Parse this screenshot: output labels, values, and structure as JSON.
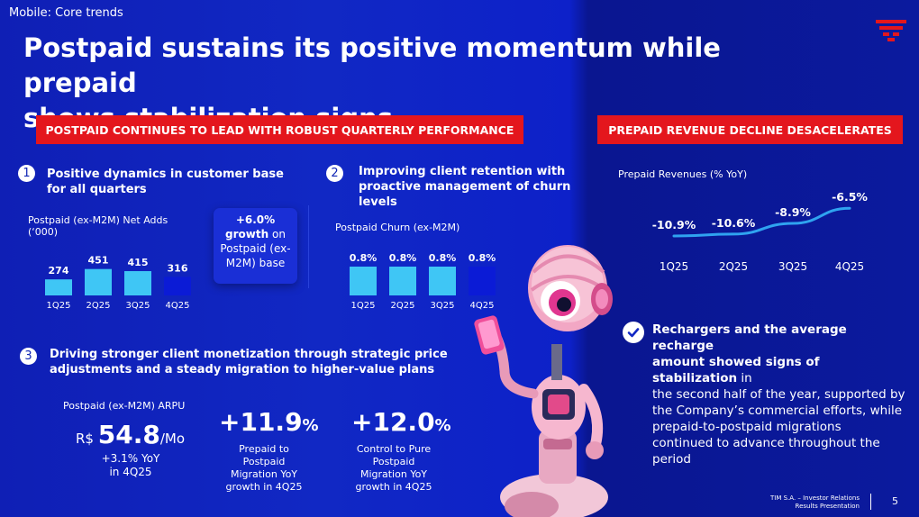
{
  "header": {
    "topic": "Mobile: Core trends",
    "title_line1": "Postpaid sustains its positive momentum while prepaid",
    "title_line2": "shows stabilization signs"
  },
  "banners": {
    "left": "POSTPAID CONTINUES TO LEAD WITH ROBUST QUARTERLY PERFORMANCE",
    "right": "PREPAID REVENUE DECLINE DESACELERATES"
  },
  "section1": {
    "number": "1",
    "heading_line1": "Positive dynamics in customer base",
    "heading_line2": "for all quarters",
    "chart_label_line1": "Postpaid (ex-M2M) Net Adds",
    "chart_label_line2": "(‘000)",
    "growth_line1": "+6.0%",
    "growth_line2": "growth",
    "growth_line2b": " on",
    "growth_line3": "Postpaid (ex-",
    "growth_line4": "M2M) base"
  },
  "section2": {
    "number": "2",
    "heading_line1": "Improving client retention with",
    "heading_line2": "proactive management of churn",
    "heading_line3": "levels",
    "chart_label": "Postpaid Churn (ex-M2M)"
  },
  "section3": {
    "number": "3",
    "heading_line1": "Driving stronger client monetization through strategic price",
    "heading_line2": "adjustments and a steady migration to higher-value plans",
    "arpu_label": "Postpaid (ex-M2M) ARPU",
    "arpu_currency": "R$ ",
    "arpu_value": "54.8",
    "arpu_unit": "/Mo",
    "arpu_growth_line1": "+3.1% YoY",
    "arpu_growth_line2": "in 4Q25",
    "metric1_value": "+11.9",
    "metric1_pct": "%",
    "metric1_line1": "Prepaid to",
    "metric1_line2": "Postpaid",
    "metric1_line3": "Migration YoY",
    "metric1_line4": "growth in 4Q25",
    "metric2_value": "+12.0",
    "metric2_pct": "%",
    "metric2_line1": "Control to Pure",
    "metric2_line2": "Postpaid",
    "metric2_line3": "Migration YoY",
    "metric2_line4": "growth in 4Q25"
  },
  "prepaid": {
    "chart_label": "Prepaid Revenues (% YoY)",
    "text_bold_line1": "Rechargers and the average recharge",
    "text_bold_line2": "amount showed signs of stabilization",
    "text_line2_rest": " in",
    "text_line3": "the second half of the year, supported by",
    "text_line4": "the Company’s commercial efforts, while",
    "text_line5": "prepaid-to-postpaid migrations",
    "text_line6": "continued to advance throughout the",
    "text_line7": "period"
  },
  "footer": {
    "line1": "TIM S.A. – Investor Relations",
    "line2": "Results Presentation",
    "page": "5"
  },
  "colors": {
    "background": "#1128c4",
    "red": "#e4161d",
    "bar_light": "#3fc6f5",
    "bar_dark": "#0b1bd6"
  },
  "chart_data": [
    {
      "type": "bar",
      "categories": [
        "1Q25",
        "2Q25",
        "3Q25",
        "4Q25"
      ],
      "values": [
        274,
        451,
        415,
        316
      ],
      "labels": [
        "274",
        "451",
        "415",
        "316"
      ],
      "ylabel": "Postpaid (ex-M2M) Net Adds (‘000)",
      "highlight_last": true
    },
    {
      "type": "bar",
      "categories": [
        "1Q25",
        "2Q25",
        "3Q25",
        "4Q25"
      ],
      "values": [
        0.8,
        0.8,
        0.8,
        0.8
      ],
      "labels": [
        "0.8%",
        "0.8%",
        "0.8%",
        "0.8%"
      ],
      "ylabel": "Postpaid Churn (ex-M2M)",
      "highlight_last": true
    },
    {
      "type": "line",
      "categories": [
        "1Q25",
        "2Q25",
        "3Q25",
        "4Q25"
      ],
      "values": [
        -10.9,
        -10.6,
        -8.9,
        -6.5
      ],
      "labels": [
        "-10.9%",
        "-10.6%",
        "-8.9%",
        "-6.5%"
      ],
      "ylabel": "Prepaid Revenues (% YoY)"
    }
  ]
}
